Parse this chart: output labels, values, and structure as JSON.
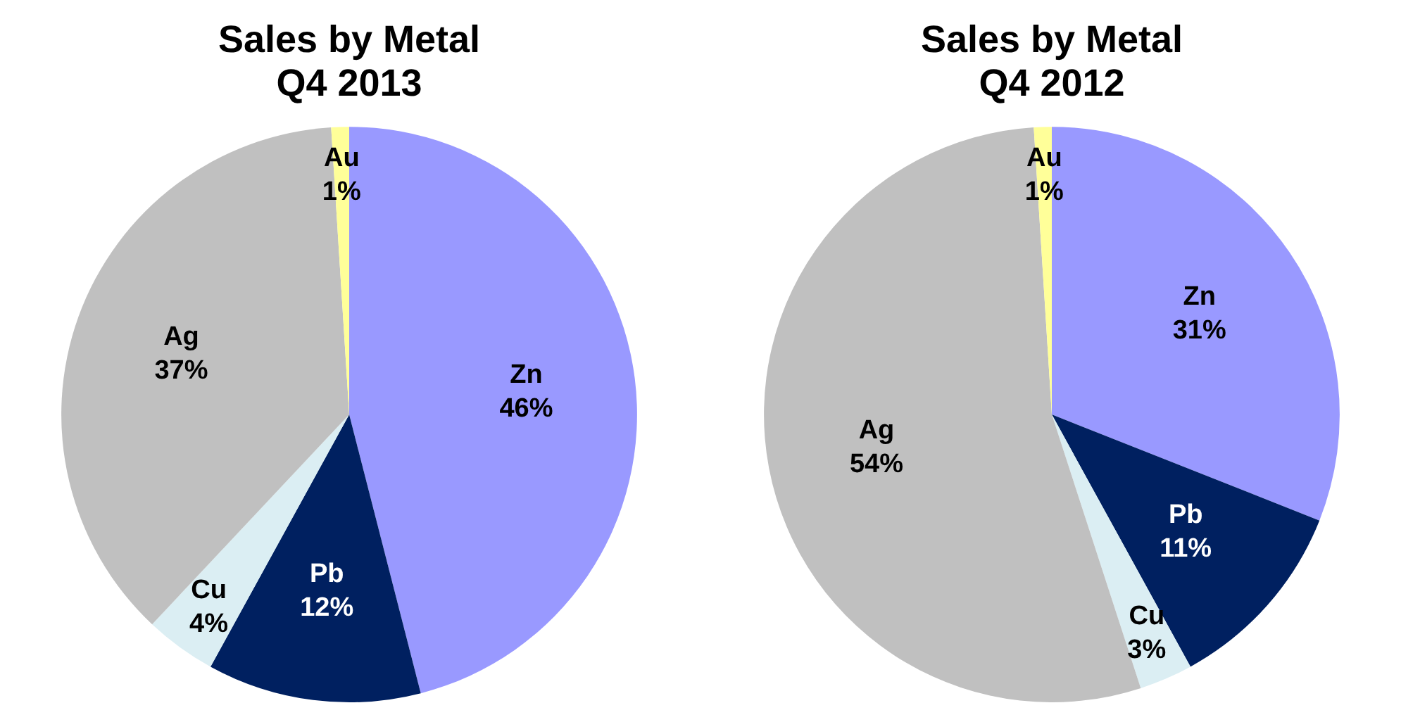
{
  "chart_data": [
    {
      "type": "pie",
      "title": "Sales by Metal\nQ4 2013",
      "categories": [
        "Zn",
        "Pb",
        "Cu",
        "Ag",
        "Au"
      ],
      "values": [
        46,
        12,
        4,
        37,
        1
      ],
      "value_labels": [
        "46%",
        "12%",
        "4%",
        "37%",
        "1%"
      ],
      "colors": [
        "#9999ff",
        "#002060",
        "#dbeef3",
        "#c0c0c0",
        "#ffff99"
      ],
      "legend": false
    },
    {
      "type": "pie",
      "title": "Sales by Metal\nQ4 2012",
      "categories": [
        "Zn",
        "Pb",
        "Cu",
        "Ag",
        "Au"
      ],
      "values": [
        31,
        11,
        3,
        54,
        1
      ],
      "value_labels": [
        "31%",
        "11%",
        "3%",
        "54%",
        "1%"
      ],
      "colors": [
        "#9999ff",
        "#002060",
        "#dbeef3",
        "#c0c0c0",
        "#ffff99"
      ],
      "legend": false
    }
  ]
}
